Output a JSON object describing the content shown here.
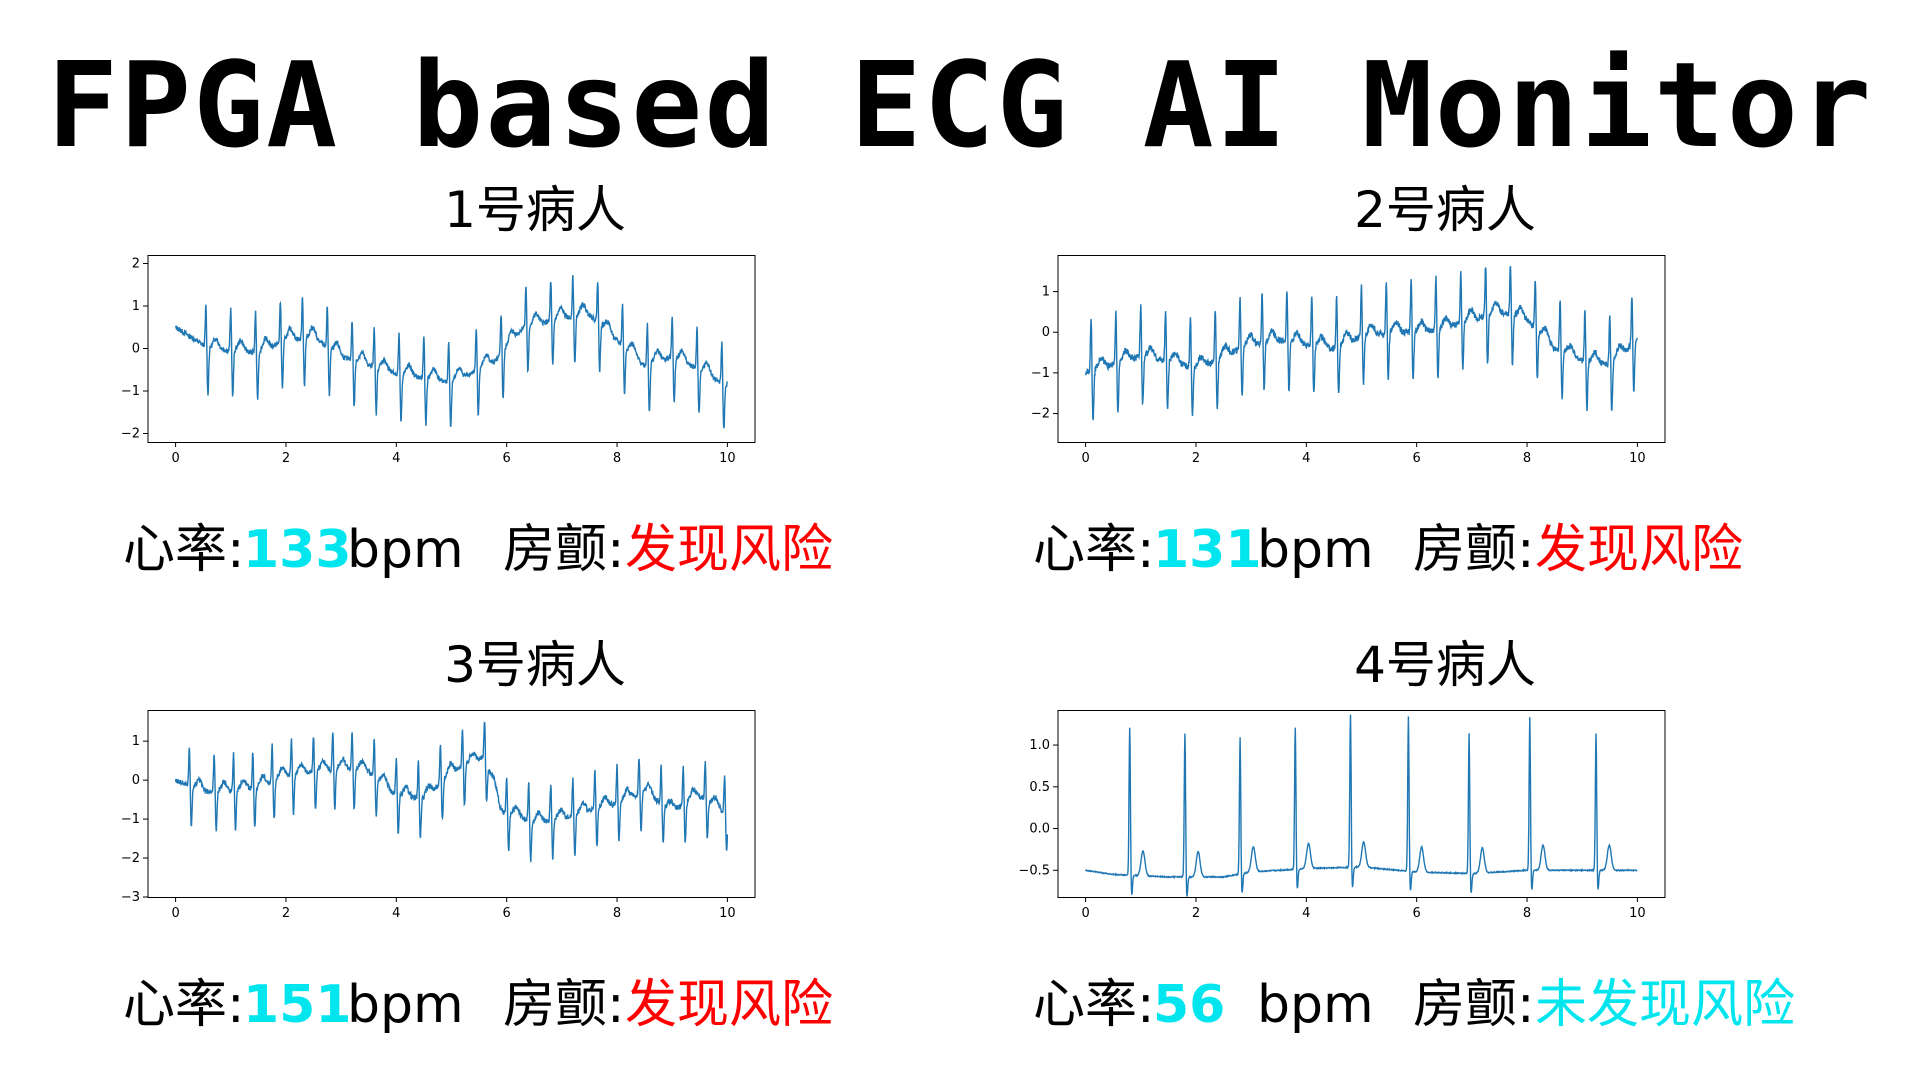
{
  "title": "FPGA based ECG AI Monitor",
  "labels": {
    "heart_rate": "心率:",
    "unit": "bpm",
    "afib": "房颤:"
  },
  "colors": {
    "trace": "#1f77b4",
    "hr": "#00e5ee",
    "risk": "#ff0000",
    "no_risk": "#00e5ee"
  },
  "patients": [
    {
      "name": "1号病人",
      "heart_rate": "133",
      "afib_status": "发现风险",
      "afib_color": "#ff0000"
    },
    {
      "name": "2号病人",
      "heart_rate": "131",
      "afib_status": "发现风险",
      "afib_color": "#ff0000"
    },
    {
      "name": "3号病人",
      "heart_rate": "151",
      "afib_status": "发现风险",
      "afib_color": "#ff0000"
    },
    {
      "name": "4号病人",
      "heart_rate": "56",
      "afib_status": "未发现风险",
      "afib_color": "#00e5ee"
    }
  ],
  "chart_data": [
    {
      "type": "line",
      "title": "",
      "xlabel": "",
      "ylabel": "",
      "xlim": [
        -0.5,
        10.5
      ],
      "ylim": [
        -2.2,
        2.2
      ],
      "xticks": [
        0,
        2,
        4,
        6,
        8,
        10
      ],
      "yticks": [
        -2,
        -1,
        0,
        1,
        2
      ],
      "ytick_labels": [
        "−2",
        "−1",
        "0",
        "1",
        "2"
      ],
      "grid": false,
      "beats": [
        0.55,
        1.0,
        1.45,
        1.9,
        2.3,
        2.75,
        3.2,
        3.6,
        4.05,
        4.5,
        4.95,
        5.45,
        5.9,
        6.35,
        6.8,
        7.2,
        7.65,
        8.1,
        8.55,
        9.0,
        9.45,
        9.9
      ],
      "baseline": [
        [
          0,
          0.5
        ],
        [
          0.6,
          0.0
        ],
        [
          1.5,
          -0.1
        ],
        [
          2.0,
          0.2
        ],
        [
          2.5,
          0.25
        ],
        [
          3.0,
          -0.2
        ],
        [
          4.0,
          -0.6
        ],
        [
          5.0,
          -0.8
        ],
        [
          5.8,
          -0.3
        ],
        [
          6.3,
          0.5
        ],
        [
          7.0,
          0.7
        ],
        [
          7.5,
          0.8
        ],
        [
          7.9,
          0.3
        ],
        [
          8.5,
          -0.4
        ],
        [
          9.0,
          -0.2
        ],
        [
          9.5,
          -0.5
        ],
        [
          10,
          -0.9
        ]
      ],
      "r_amp": 1.0,
      "s_amp": -1.1,
      "noise": 0.06
    },
    {
      "type": "line",
      "title": "",
      "xlabel": "",
      "ylabel": "",
      "xlim": [
        -0.5,
        10.5
      ],
      "ylim": [
        -2.7,
        1.9
      ],
      "xticks": [
        0,
        2,
        4,
        6,
        8,
        10
      ],
      "yticks": [
        -2,
        -1,
        0,
        1
      ],
      "ytick_labels": [
        "−2",
        "−1",
        "0",
        "1"
      ],
      "grid": false,
      "beats": [
        0.1,
        0.55,
        1.0,
        1.45,
        1.9,
        2.35,
        2.8,
        3.2,
        3.65,
        4.1,
        4.55,
        5.0,
        5.45,
        5.9,
        6.35,
        6.8,
        7.25,
        7.7,
        8.15,
        8.6,
        9.05,
        9.5,
        9.9
      ],
      "baseline": [
        [
          0,
          -1.0
        ],
        [
          0.5,
          -0.8
        ],
        [
          1.0,
          -0.6
        ],
        [
          1.5,
          -0.7
        ],
        [
          2.0,
          -0.9
        ],
        [
          2.5,
          -0.6
        ],
        [
          3.0,
          -0.3
        ],
        [
          3.5,
          -0.2
        ],
        [
          4.0,
          -0.3
        ],
        [
          4.5,
          -0.4
        ],
        [
          5.0,
          -0.1
        ],
        [
          5.5,
          0.0
        ],
        [
          6.0,
          0.0
        ],
        [
          6.5,
          0.1
        ],
        [
          7.0,
          0.3
        ],
        [
          7.5,
          0.5
        ],
        [
          8.0,
          0.3
        ],
        [
          8.5,
          -0.4
        ],
        [
          9.0,
          -0.7
        ],
        [
          9.5,
          -0.8
        ],
        [
          10,
          -0.2
        ]
      ],
      "r_amp": 1.3,
      "s_amp": -1.2,
      "noise": 0.08
    },
    {
      "type": "line",
      "title": "",
      "xlabel": "",
      "ylabel": "",
      "xlim": [
        -0.5,
        10.5
      ],
      "ylim": [
        -3.0,
        1.8
      ],
      "xticks": [
        0,
        2,
        4,
        6,
        8,
        10
      ],
      "yticks": [
        -3,
        -2,
        -1,
        0,
        1
      ],
      "ytick_labels": [
        "−3",
        "−2",
        "−1",
        "0",
        "1"
      ],
      "grid": false,
      "beats": [
        0.25,
        0.7,
        1.05,
        1.4,
        1.75,
        2.1,
        2.5,
        2.85,
        3.2,
        3.6,
        4.0,
        4.4,
        4.8,
        5.2,
        5.6,
        6.0,
        6.4,
        6.8,
        7.2,
        7.6,
        8.0,
        8.4,
        8.8,
        9.2,
        9.6,
        9.95
      ],
      "baseline": [
        [
          0,
          0.0
        ],
        [
          0.5,
          -0.3
        ],
        [
          1.0,
          -0.3
        ],
        [
          1.5,
          -0.2
        ],
        [
          2.0,
          0.1
        ],
        [
          2.5,
          0.2
        ],
        [
          3.0,
          0.3
        ],
        [
          3.5,
          0.2
        ],
        [
          4.0,
          -0.4
        ],
        [
          4.5,
          -0.5
        ],
        [
          5.0,
          0.2
        ],
        [
          5.6,
          0.6
        ],
        [
          5.9,
          -0.8
        ],
        [
          6.5,
          -1.1
        ],
        [
          7.0,
          -1.0
        ],
        [
          7.5,
          -0.8
        ],
        [
          8.0,
          -0.6
        ],
        [
          8.5,
          -0.3
        ],
        [
          9.0,
          -0.8
        ],
        [
          9.5,
          -0.4
        ],
        [
          10,
          -0.9
        ]
      ],
      "r_amp": 1.0,
      "s_amp": -1.0,
      "noise": 0.07
    },
    {
      "type": "line",
      "title": "",
      "xlabel": "",
      "ylabel": "",
      "xlim": [
        -0.5,
        10.5
      ],
      "ylim": [
        -0.82,
        1.42
      ],
      "xticks": [
        0,
        2,
        4,
        6,
        8,
        10
      ],
      "yticks": [
        -0.5,
        0.0,
        0.5,
        1.0
      ],
      "ytick_labels": [
        "−0.5",
        "0.0",
        "0.5",
        "1.0"
      ],
      "grid": false,
      "beats": [
        0.8,
        1.8,
        2.8,
        3.8,
        4.8,
        5.85,
        6.95,
        8.05,
        9.25
      ],
      "r_heights": [
        1.22,
        1.15,
        1.1,
        1.22,
        1.38,
        1.36,
        1.15,
        1.34,
        1.15
      ],
      "baseline": [
        [
          0,
          -0.5
        ],
        [
          0.5,
          -0.55
        ],
        [
          1.5,
          -0.58
        ],
        [
          2.5,
          -0.58
        ],
        [
          3.0,
          -0.52
        ],
        [
          4.0,
          -0.48
        ],
        [
          5.0,
          -0.46
        ],
        [
          6.0,
          -0.52
        ],
        [
          7.0,
          -0.54
        ],
        [
          8.0,
          -0.5
        ],
        [
          9.0,
          -0.5
        ],
        [
          10,
          -0.5
        ]
      ],
      "r_amp": 1.7,
      "s_amp": -0.25,
      "t_amp": 0.3,
      "noise": 0.006
    }
  ]
}
